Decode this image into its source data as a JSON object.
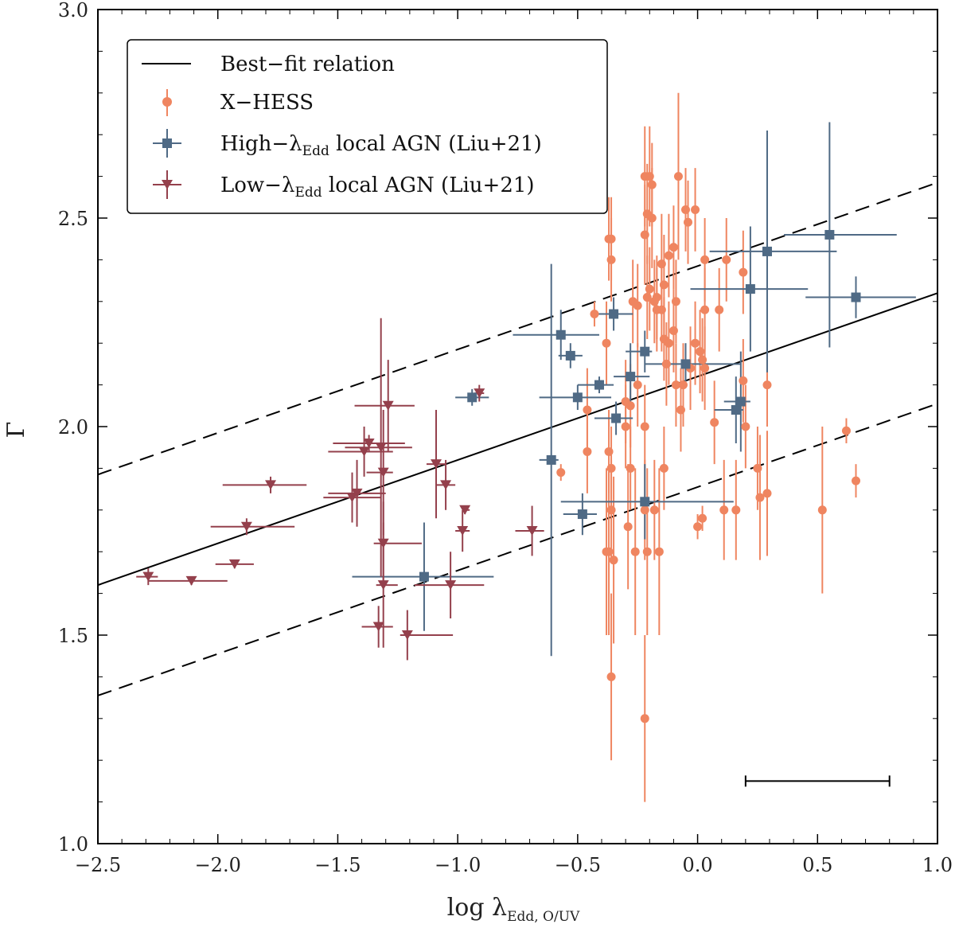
{
  "chart_data": {
    "type": "scatter",
    "title": "",
    "xlabel": "log λ",
    "xlabel_sub": "Edd, O/UV",
    "ylabel": "Γ",
    "xlim": [
      -2.5,
      1.0
    ],
    "ylim": [
      1.0,
      3.0
    ],
    "x_ticks": [
      "−2.5",
      "−2.0",
      "−1.5",
      "−1.0",
      "−0.5",
      "0.0",
      "0.5",
      "1.0"
    ],
    "y_ticks": [
      "1.0",
      "1.5",
      "2.0",
      "2.5",
      "3.0"
    ],
    "colors": {
      "xhess": "#ef8560",
      "high": "#4f6a85",
      "low": "#94404c",
      "line": "#000000"
    },
    "best_fit": {
      "label": "Best−fit relation",
      "slope": 0.2,
      "intercept": 2.12,
      "scatter": 0.265
    },
    "legend": {
      "best_fit": "Best−fit relation",
      "xhess": "X−HESS",
      "high_prefix": "High−λ",
      "high_sub": "Edd",
      "high_suffix": " local AGN (Liu+21)",
      "low_prefix": "Low−λ",
      "low_sub": "Edd",
      "low_suffix": " local AGN (Liu+21)"
    },
    "typical_error": {
      "x_range": [
        0.2,
        0.8
      ],
      "y": 1.15
    },
    "series": [
      {
        "name": "X-HESS",
        "marker": "circle",
        "points": [
          [
            -0.43,
            2.27,
            0.03
          ],
          [
            -0.37,
            2.45,
            0.1
          ],
          [
            -0.36,
            2.45,
            0.1
          ],
          [
            -0.36,
            2.4,
            0.1
          ],
          [
            -0.22,
            2.6,
            0.12
          ],
          [
            -0.2,
            2.6,
            0.12
          ],
          [
            -0.19,
            2.58,
            0.1
          ],
          [
            -0.08,
            2.6,
            0.2
          ],
          [
            -0.21,
            2.51,
            0.12
          ],
          [
            -0.19,
            2.5,
            0.12
          ],
          [
            -0.22,
            2.46,
            0.12
          ],
          [
            -0.05,
            2.52,
            0.1
          ],
          [
            -0.01,
            2.52,
            0.1
          ],
          [
            -0.04,
            2.49,
            0.1
          ],
          [
            -0.1,
            2.43,
            0.1
          ],
          [
            -0.15,
            2.39,
            0.12
          ],
          [
            -0.12,
            2.41,
            0.1
          ],
          [
            0.03,
            2.4,
            0.1
          ],
          [
            0.12,
            2.4,
            0.1
          ],
          [
            -0.14,
            2.34,
            0.12
          ],
          [
            -0.2,
            2.33,
            0.1
          ],
          [
            -0.21,
            2.31,
            0.1
          ],
          [
            -0.17,
            2.31,
            0.1
          ],
          [
            -0.18,
            2.3,
            0.1
          ],
          [
            -0.27,
            2.3,
            0.1
          ],
          [
            -0.25,
            2.29,
            0.1
          ],
          [
            -0.15,
            2.28,
            0.1
          ],
          [
            -0.09,
            2.3,
            0.1
          ],
          [
            -0.17,
            2.28,
            0.1
          ],
          [
            0.03,
            2.28,
            0.1
          ],
          [
            0.09,
            2.28,
            0.1
          ],
          [
            0.19,
            2.37,
            0.1
          ],
          [
            -0.38,
            2.2,
            0.1
          ],
          [
            -0.14,
            2.21,
            0.1
          ],
          [
            -0.12,
            2.2,
            0.1
          ],
          [
            -0.1,
            2.23,
            0.1
          ],
          [
            -0.01,
            2.2,
            0.1
          ],
          [
            0.01,
            2.18,
            0.1
          ],
          [
            0.02,
            2.16,
            0.1
          ],
          [
            0.03,
            2.14,
            0.1
          ],
          [
            -0.03,
            2.14,
            0.1
          ],
          [
            -0.13,
            2.15,
            0.1
          ],
          [
            -0.25,
            2.1,
            0.1
          ],
          [
            -0.09,
            2.1,
            0.1
          ],
          [
            -0.06,
            2.1,
            0.1
          ],
          [
            -0.3,
            2.06,
            0.1
          ],
          [
            -0.28,
            2.05,
            0.1
          ],
          [
            0.19,
            2.11,
            0.1
          ],
          [
            0.29,
            2.1,
            0.1
          ],
          [
            -0.46,
            2.04,
            0.1
          ],
          [
            -0.07,
            2.04,
            0.1
          ],
          [
            0.07,
            2.01,
            0.1
          ],
          [
            -0.3,
            2.0,
            0.1
          ],
          [
            -0.22,
            2.0,
            0.1
          ],
          [
            0.2,
            2.0,
            0.1
          ],
          [
            -0.46,
            1.94,
            0.1
          ],
          [
            -0.37,
            1.94,
            0.1
          ],
          [
            -0.36,
            1.9,
            0.1
          ],
          [
            -0.28,
            1.9,
            0.1
          ],
          [
            -0.14,
            1.9,
            0.1
          ],
          [
            -0.57,
            1.89,
            0.02
          ],
          [
            0.25,
            1.9,
            0.1
          ],
          [
            0.62,
            1.99,
            0.03
          ],
          [
            0.66,
            1.87,
            0.04
          ],
          [
            -0.36,
            1.8,
            0.12
          ],
          [
            -0.22,
            1.8,
            0.12
          ],
          [
            -0.18,
            1.8,
            0.12
          ],
          [
            0.11,
            1.8,
            0.12
          ],
          [
            0.16,
            1.8,
            0.12
          ],
          [
            0.52,
            1.8,
            0.2
          ],
          [
            -0.29,
            1.76,
            0.15
          ],
          [
            0.0,
            1.76,
            0.03
          ],
          [
            0.02,
            1.78,
            0.03
          ],
          [
            0.26,
            1.83,
            0.15
          ],
          [
            0.29,
            1.84,
            0.15
          ],
          [
            -0.38,
            1.7,
            0.2
          ],
          [
            -0.37,
            1.7,
            0.2
          ],
          [
            -0.35,
            1.68,
            0.2
          ],
          [
            -0.26,
            1.7,
            0.2
          ],
          [
            -0.21,
            1.7,
            0.2
          ],
          [
            -0.16,
            1.7,
            0.2
          ],
          [
            -0.36,
            1.4,
            0.2
          ],
          [
            -0.22,
            1.3,
            0.2
          ]
        ]
      },
      {
        "name": "High-λEdd local AGN (Liu+21)",
        "marker": "square",
        "points": [
          [
            0.55,
            2.46,
            0.19,
            0.28,
            0.27
          ],
          [
            0.29,
            2.42,
            0.24,
            0.29,
            0.29
          ],
          [
            0.22,
            2.33,
            0.25,
            0.24,
            0.15
          ],
          [
            0.66,
            2.31,
            0.21,
            0.25,
            0.05
          ],
          [
            -0.35,
            2.27,
            0.07,
            0.08,
            0.04
          ],
          [
            -0.57,
            2.22,
            0.2,
            0.16,
            0.06
          ],
          [
            -0.22,
            2.18,
            0.08,
            0.03,
            0.05
          ],
          [
            -0.53,
            2.17,
            0.05,
            0.05,
            0.03
          ],
          [
            -0.05,
            2.15,
            0.17,
            0.23,
            0.05
          ],
          [
            -0.28,
            2.12,
            0.07,
            0.08,
            0.08
          ],
          [
            -0.41,
            2.1,
            0.09,
            0.06,
            0.02
          ],
          [
            -0.5,
            2.07,
            0.16,
            0.14,
            0.03
          ],
          [
            -0.94,
            2.07,
            0.07,
            0.07,
            0.02
          ],
          [
            -0.34,
            2.02,
            0.09,
            0.07,
            0.04
          ],
          [
            0.16,
            2.04,
            0.09,
            0.03,
            0.08
          ],
          [
            0.18,
            2.06,
            0.07,
            0.04,
            0.12
          ],
          [
            -0.61,
            1.92,
            0.05,
            0.03,
            0.47
          ],
          [
            -0.22,
            1.82,
            0.35,
            0.37,
            0.09
          ],
          [
            -0.48,
            1.79,
            0.08,
            0.06,
            0.05
          ],
          [
            -1.14,
            1.64,
            0.3,
            0.29,
            0.13
          ]
        ]
      },
      {
        "name": "Low-λEdd local AGN (Liu+21)",
        "marker": "triangle",
        "points": [
          [
            -2.29,
            1.64,
            0.05,
            0.04,
            0.02
          ],
          [
            -2.11,
            1.63,
            0.18,
            0.15,
            0.01
          ],
          [
            -1.93,
            1.67,
            0.08,
            0.08,
            0.01
          ],
          [
            -1.88,
            1.76,
            0.15,
            0.2,
            0.02
          ],
          [
            -1.78,
            1.86,
            0.2,
            0.15,
            0.02
          ],
          [
            -1.44,
            1.83,
            0.12,
            0.12,
            0.06
          ],
          [
            -1.42,
            1.84,
            0.12,
            0.12,
            0.08
          ],
          [
            -1.39,
            1.94,
            0.15,
            0.12,
            0.06
          ],
          [
            -1.37,
            1.96,
            0.15,
            0.15,
            0.02
          ],
          [
            -1.32,
            1.95,
            0.15,
            0.13,
            0.31
          ],
          [
            -1.31,
            1.89,
            0.07,
            0.04,
            0.15
          ],
          [
            -1.31,
            1.72,
            0.04,
            0.16,
            0.1
          ],
          [
            -1.31,
            1.62,
            0.03,
            0.06,
            0.15
          ],
          [
            -1.29,
            2.05,
            0.14,
            0.11,
            0.11
          ],
          [
            -1.33,
            1.52,
            0.07,
            0.06,
            0.05
          ],
          [
            -1.21,
            1.5,
            0.03,
            0.19,
            0.06
          ],
          [
            -1.09,
            1.91,
            0.04,
            0.04,
            0.13
          ],
          [
            -1.05,
            1.86,
            0.04,
            0.04,
            0.06
          ],
          [
            -1.03,
            1.62,
            0.15,
            0.14,
            0.08
          ],
          [
            -0.98,
            1.75,
            0.03,
            0.03,
            0.05
          ],
          [
            -0.97,
            1.8,
            0.01,
            0.02,
            0.01
          ],
          [
            -0.91,
            2.08,
            0.02,
            0.02,
            0.02
          ],
          [
            -0.69,
            1.75,
            0.07,
            0.05,
            0.06
          ]
        ]
      }
    ]
  }
}
